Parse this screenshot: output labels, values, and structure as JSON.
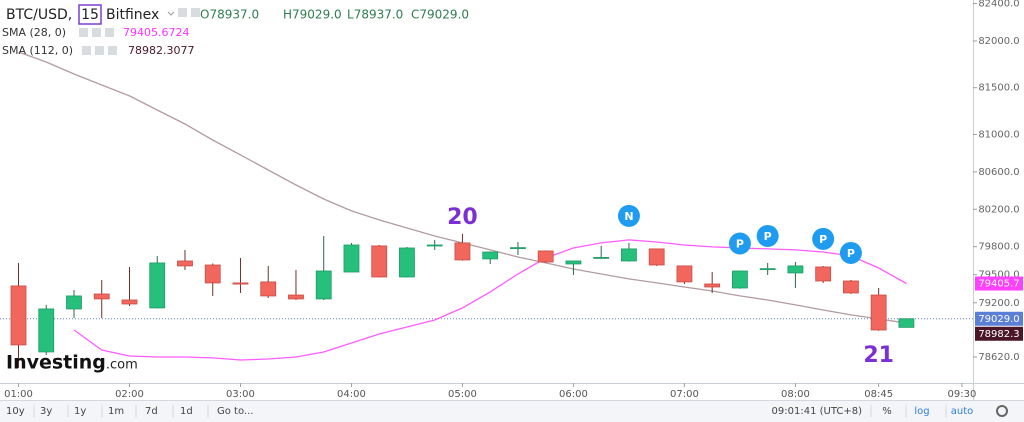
{
  "chart_data": {
    "type": "candlestick",
    "symbol": "BTC/USD,",
    "interval": "15",
    "exchange": "Bitfinex",
    "ohlc_header": [
      {
        "prefix": "O",
        "label": "78937.0"
      },
      {
        "prefix": "H",
        "label": "79029.0"
      },
      {
        "prefix": "L",
        "label": "78937.0"
      },
      {
        "prefix": "C",
        "label": "79029.0"
      }
    ],
    "x": [
      "01:00",
      "01:15",
      "01:30",
      "01:45",
      "02:00",
      "02:15",
      "02:30",
      "02:45",
      "03:00",
      "03:15",
      "03:30",
      "03:45",
      "04:00",
      "04:15",
      "04:30",
      "04:45",
      "05:00",
      "05:15",
      "05:30",
      "05:45",
      "06:00",
      "06:15",
      "06:30",
      "06:45",
      "07:00",
      "07:15",
      "07:30",
      "07:45",
      "08:00",
      "08:15",
      "08:30",
      "08:45",
      "09:00"
    ],
    "open": [
      79380,
      78674,
      79134,
      79294,
      79230,
      79145,
      79647,
      79604,
      79412,
      79423,
      79283,
      79241,
      79529,
      79808,
      79476,
      79808,
      79840,
      79669,
      79786,
      79754,
      79615,
      79680,
      79647,
      79776,
      79594,
      79401,
      79358,
      79560,
      79519,
      79583,
      79433,
      79283,
      78937
    ],
    "high": [
      79626,
      79177,
      79337,
      79444,
      79583,
      79701,
      79765,
      79620,
      79679,
      79594,
      79551,
      79915,
      79840,
      79818,
      79797,
      79872,
      79936,
      79750,
      79850,
      79760,
      79650,
      79808,
      79840,
      79780,
      79600,
      79529,
      79545,
      79626,
      79636,
      79594,
      79444,
      79358,
      79029
    ],
    "low": [
      78503,
      78642,
      79037,
      79037,
      79166,
      79140,
      79551,
      79273,
      79305,
      79251,
      79230,
      79230,
      79529,
      79470,
      79470,
      79765,
      79650,
      79615,
      79711,
      79626,
      79497,
      79670,
      79640,
      79594,
      79401,
      79305,
      79350,
      79497,
      79358,
      79412,
      79295,
      78900,
      78937
    ],
    "close": [
      78749,
      79134,
      79273,
      79241,
      79187,
      79626,
      79594,
      79412,
      79400,
      79273,
      79241,
      79540,
      79818,
      79476,
      79786,
      79818,
      79658,
      79743,
      79790,
      79636,
      79647,
      79685,
      79776,
      79604,
      79423,
      79369,
      79540,
      79565,
      79594,
      79433,
      79305,
      78909,
      79029
    ],
    "up_color": "#26c07c",
    "down_color": "#f2675d",
    "series": [
      {
        "name": "SMA (28, 0)",
        "color": "#ff5cff",
        "values": [
          null,
          null,
          78909,
          78695,
          78631,
          78620,
          78620,
          78610,
          78588,
          78599,
          78620,
          78674,
          78770,
          78866,
          78941,
          79016,
          79145,
          79316,
          79508,
          79679,
          79786,
          79840,
          79872,
          79850,
          79818,
          79797,
          79786,
          79776,
          79765,
          79743,
          79701,
          79572,
          79405.6724
        ]
      },
      {
        "name": "SMA (112, 0)",
        "color": "#b29ba1",
        "values": [
          81882,
          81775,
          81647,
          81529,
          81412,
          81262,
          81112,
          80941,
          80781,
          80620,
          80460,
          80310,
          80182,
          80086,
          80000,
          79914,
          79840,
          79765,
          79690,
          79626,
          79561,
          79508,
          79455,
          79412,
          79369,
          79326,
          79273,
          79230,
          79177,
          79123,
          79070,
          79027,
          78982.3077
        ]
      }
    ],
    "price_labels": [
      {
        "value": 79405.7,
        "label": "79405.7",
        "color": "#ff40ff"
      },
      {
        "value": 79029,
        "label": "79029.0",
        "color": "#5b7fd6"
      },
      {
        "value": 78982.3,
        "label": "78982.3",
        "color": "#4a1628"
      }
    ],
    "current_price_line": 79029,
    "annotations": [
      {
        "text": "20",
        "x": "05:00",
        "position": "above"
      },
      {
        "text": "21",
        "x": "08:45",
        "position": "below"
      }
    ],
    "events": [
      {
        "label": "N",
        "x": "06:30"
      },
      {
        "label": "P",
        "x": "07:30"
      },
      {
        "label": "P",
        "x": "07:45"
      },
      {
        "label": "P",
        "x": "08:15"
      },
      {
        "label": "P",
        "x": "08:30"
      }
    ],
    "xlim": [
      "00:50",
      "09:36"
    ],
    "xticks": [
      "01:00",
      "02:00",
      "03:00",
      "04:00",
      "05:00",
      "06:00",
      "07:00",
      "08:00",
      "08:45",
      "09:30"
    ],
    "ylim": [
      78342,
      82438
    ],
    "yticks": [
      {
        "value": 82400,
        "label": "82400.0"
      },
      {
        "value": 82000,
        "label": "82000.0"
      },
      {
        "value": 81500,
        "label": "81500.0"
      },
      {
        "value": 81000,
        "label": "81000.0"
      },
      {
        "value": 80600,
        "label": "80600.0"
      },
      {
        "value": 80200,
        "label": "80200.0"
      },
      {
        "value": 79800,
        "label": "79800.0"
      },
      {
        "value": 79500,
        "label": "79500.0"
      },
      {
        "value": 79200,
        "label": "79200.0"
      },
      {
        "value": 78620,
        "label": "78620.0"
      }
    ],
    "grid": false,
    "logo": [
      "Investing",
      ".com"
    ]
  },
  "toolbar": {
    "ranges": [
      "10y",
      "3y",
      "1y",
      "1m",
      "7d",
      "1d"
    ],
    "goto": "Go to...",
    "clock": "09:01:41 (UTC+8)",
    "options": [
      "%",
      "log",
      "auto"
    ]
  }
}
